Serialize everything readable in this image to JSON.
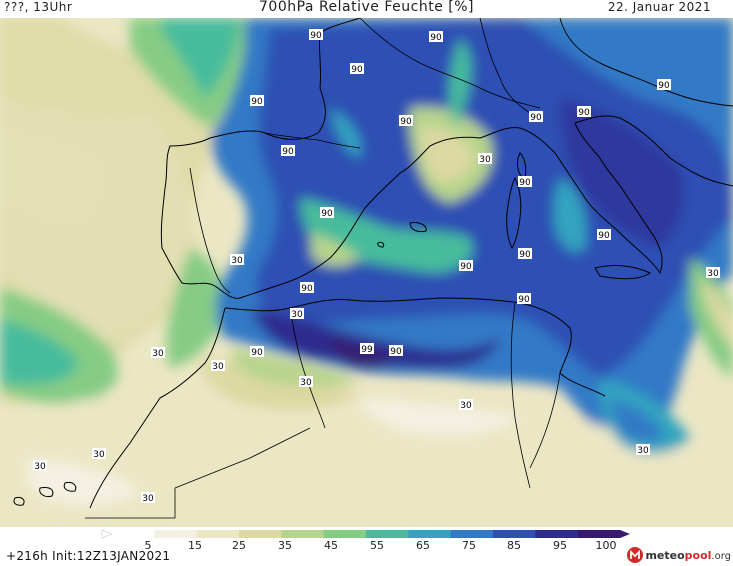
{
  "header": {
    "left": "???, 13Uhr",
    "title": "700hPa Relative Feuchte [%]",
    "date": "22. Januar 2021"
  },
  "footer": {
    "run_info": "+216h  Init:12Z13JAN2021",
    "logo_name": "meteo",
    "logo_accent": "pool",
    "logo_tld": ".org"
  },
  "legend": {
    "ticks": [
      "5",
      "15",
      "25",
      "35",
      "45",
      "55",
      "65",
      "75",
      "85",
      "95",
      "100"
    ],
    "colors": [
      "#ffffff",
      "#f4f1e2",
      "#ebe6c4",
      "#dcd9a2",
      "#b7d48c",
      "#86cc84",
      "#46bc9c",
      "#33a4c0",
      "#3079c6",
      "#2f4fb4",
      "#2f2c8e",
      "#371a70"
    ]
  },
  "contour_labels": [
    {
      "text": "90"
    },
    {
      "text": "90"
    },
    {
      "text": "90"
    },
    {
      "text": "90"
    },
    {
      "text": "90"
    },
    {
      "text": "90"
    },
    {
      "text": "90"
    },
    {
      "text": "90"
    },
    {
      "text": "30"
    },
    {
      "text": "90"
    },
    {
      "text": "90"
    },
    {
      "text": "90"
    },
    {
      "text": "90"
    },
    {
      "text": "90"
    },
    {
      "text": "30"
    },
    {
      "text": "30"
    },
    {
      "text": "90"
    },
    {
      "text": "90"
    },
    {
      "text": "90"
    },
    {
      "text": "30"
    },
    {
      "text": "90"
    },
    {
      "text": "99"
    },
    {
      "text": "90"
    },
    {
      "text": "30"
    },
    {
      "text": "30"
    },
    {
      "text": "30"
    },
    {
      "text": "30"
    },
    {
      "text": "30"
    },
    {
      "text": "30"
    },
    {
      "text": "30"
    },
    {
      "text": "30"
    }
  ]
}
